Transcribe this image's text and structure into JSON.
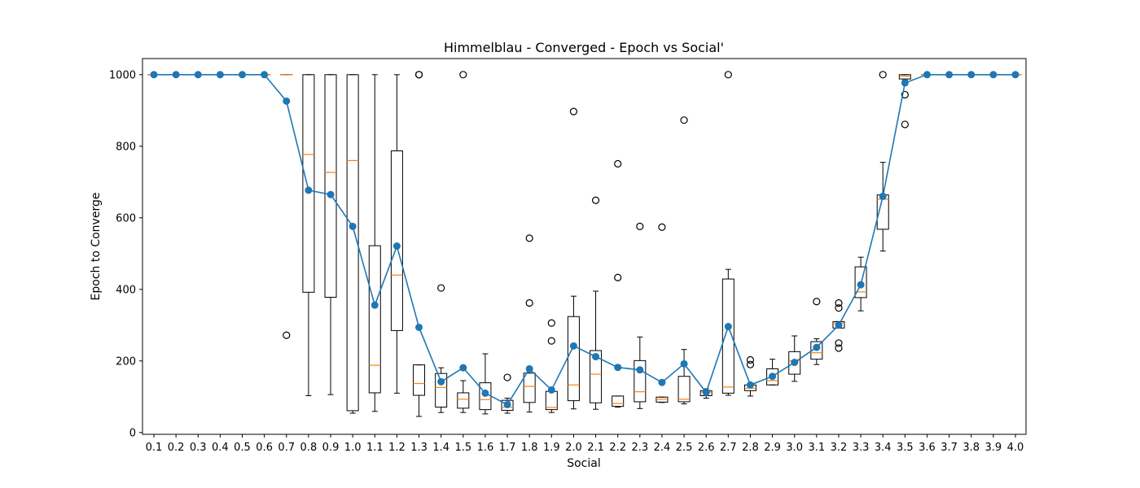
{
  "chart_data": {
    "type": "box",
    "title": "Himmelblau - Converged - Epoch vs Social'",
    "xlabel": "Social",
    "ylabel": "Epoch to Converge",
    "ylim": [
      -5,
      1045
    ],
    "yticks": [
      0,
      200,
      400,
      600,
      800,
      1000
    ],
    "grid": false,
    "categories": [
      "0.1",
      "0.2",
      "0.3",
      "0.4",
      "0.5",
      "0.6",
      "0.7",
      "0.8",
      "0.9",
      "1.0",
      "1.1",
      "1.2",
      "1.3",
      "1.4",
      "1.5",
      "1.6",
      "1.7",
      "1.8",
      "1.9",
      "2.0",
      "2.1",
      "2.2",
      "2.3",
      "2.4",
      "2.5",
      "2.6",
      "2.7",
      "2.8",
      "2.9",
      "3.0",
      "3.1",
      "3.2",
      "3.3",
      "3.4",
      "3.5",
      "3.6",
      "3.7",
      "3.8",
      "3.9",
      "4.0"
    ],
    "box_series": {
      "box_color": "#000000",
      "median_color": "#ff7f0e",
      "boxes": [
        {
          "q1": 1000,
          "median": 1000,
          "q3": 1000,
          "whislo": 1000,
          "whishi": 1000,
          "fliers": []
        },
        {
          "q1": 1000,
          "median": 1000,
          "q3": 1000,
          "whislo": 1000,
          "whishi": 1000,
          "fliers": []
        },
        {
          "q1": 1000,
          "median": 1000,
          "q3": 1000,
          "whislo": 1000,
          "whishi": 1000,
          "fliers": []
        },
        {
          "q1": 1000,
          "median": 1000,
          "q3": 1000,
          "whislo": 1000,
          "whishi": 1000,
          "fliers": []
        },
        {
          "q1": 1000,
          "median": 1000,
          "q3": 1000,
          "whislo": 1000,
          "whishi": 1000,
          "fliers": []
        },
        {
          "q1": 1000,
          "median": 1000,
          "q3": 1000,
          "whislo": 1000,
          "whishi": 1000,
          "fliers": []
        },
        {
          "q1": 1000,
          "median": 1000,
          "q3": 1000,
          "whislo": 1000,
          "whishi": 1000,
          "fliers": [
            272
          ]
        },
        {
          "q1": 392,
          "median": 777,
          "q3": 1000,
          "whislo": 103,
          "whishi": 1000,
          "fliers": []
        },
        {
          "q1": 378,
          "median": 727,
          "q3": 1000,
          "whislo": 106,
          "whishi": 1000,
          "fliers": []
        },
        {
          "q1": 61,
          "median": 760,
          "q3": 1000,
          "whislo": 54,
          "whishi": 1000,
          "fliers": []
        },
        {
          "q1": 111,
          "median": 188,
          "q3": 522,
          "whislo": 59,
          "whishi": 1000,
          "fliers": []
        },
        {
          "q1": 285,
          "median": 440,
          "q3": 787,
          "whislo": 110,
          "whishi": 1000,
          "fliers": []
        },
        {
          "q1": 104,
          "median": 137,
          "q3": 189,
          "whislo": 45,
          "whishi": 189,
          "fliers": [
            1000,
            1000
          ]
        },
        {
          "q1": 71,
          "median": 126,
          "q3": 165,
          "whislo": 56,
          "whishi": 181,
          "fliers": [
            404
          ]
        },
        {
          "q1": 68,
          "median": 93,
          "q3": 111,
          "whislo": 56,
          "whishi": 145,
          "fliers": [
            1000
          ]
        },
        {
          "q1": 64,
          "median": 92,
          "q3": 139,
          "whislo": 52,
          "whishi": 220,
          "fliers": []
        },
        {
          "q1": 62,
          "median": 71,
          "q3": 90,
          "whislo": 54,
          "whishi": 96,
          "fliers": [
            154
          ]
        },
        {
          "q1": 84,
          "median": 129,
          "q3": 166,
          "whislo": 57,
          "whishi": 170,
          "fliers": [
            543,
            362
          ]
        },
        {
          "q1": 64,
          "median": 70,
          "q3": 115,
          "whislo": 56,
          "whishi": 121,
          "fliers": [
            306,
            256
          ]
        },
        {
          "q1": 89,
          "median": 133,
          "q3": 324,
          "whislo": 66,
          "whishi": 381,
          "fliers": [
            897
          ]
        },
        {
          "q1": 83,
          "median": 163,
          "q3": 229,
          "whislo": 65,
          "whishi": 395,
          "fliers": [
            649
          ]
        },
        {
          "q1": 73,
          "median": 81,
          "q3": 102,
          "whislo": 71,
          "whishi": 102,
          "fliers": [
            751,
            433
          ]
        },
        {
          "q1": 86,
          "median": 114,
          "q3": 201,
          "whislo": 67,
          "whishi": 267,
          "fliers": [
            576
          ]
        },
        {
          "q1": 85,
          "median": 93,
          "q3": 99,
          "whislo": 84,
          "whishi": 99,
          "fliers": [
            574
          ]
        },
        {
          "q1": 86,
          "median": 93,
          "q3": 157,
          "whislo": 80,
          "whishi": 232,
          "fliers": [
            873
          ]
        },
        {
          "q1": 103,
          "median": 113,
          "q3": 117,
          "whislo": 96,
          "whishi": 122,
          "fliers": []
        },
        {
          "q1": 110,
          "median": 127,
          "q3": 429,
          "whislo": 104,
          "whishi": 456,
          "fliers": [
            1000
          ]
        },
        {
          "q1": 117,
          "median": 124,
          "q3": 133,
          "whislo": 102,
          "whishi": 138,
          "fliers": [
            203,
            190
          ]
        },
        {
          "q1": 133,
          "median": 145,
          "q3": 178,
          "whislo": 133,
          "whishi": 205,
          "fliers": []
        },
        {
          "q1": 163,
          "median": 200,
          "q3": 226,
          "whislo": 143,
          "whishi": 270,
          "fliers": []
        },
        {
          "q1": 205,
          "median": 223,
          "q3": 254,
          "whislo": 190,
          "whishi": 262,
          "fliers": [
            366
          ]
        },
        {
          "q1": 292,
          "median": 306,
          "q3": 310,
          "whislo": 292,
          "whishi": 310,
          "fliers": [
            362,
            348,
            250,
            236
          ]
        },
        {
          "q1": 377,
          "median": 393,
          "q3": 463,
          "whislo": 340,
          "whishi": 490,
          "fliers": []
        },
        {
          "q1": 568,
          "median": 652,
          "q3": 664,
          "whislo": 507,
          "whishi": 755,
          "fliers": [
            1000
          ]
        },
        {
          "q1": 988,
          "median": 996,
          "q3": 1000,
          "whislo": 985,
          "whishi": 1000,
          "fliers": [
            944,
            861
          ]
        },
        {
          "q1": 1000,
          "median": 1000,
          "q3": 1000,
          "whislo": 1000,
          "whishi": 1000,
          "fliers": []
        },
        {
          "q1": 1000,
          "median": 1000,
          "q3": 1000,
          "whislo": 1000,
          "whishi": 1000,
          "fliers": []
        },
        {
          "q1": 1000,
          "median": 1000,
          "q3": 1000,
          "whislo": 1000,
          "whishi": 1000,
          "fliers": []
        },
        {
          "q1": 1000,
          "median": 1000,
          "q3": 1000,
          "whislo": 1000,
          "whishi": 1000,
          "fliers": []
        },
        {
          "q1": 1000,
          "median": 1000,
          "q3": 1000,
          "whislo": 1000,
          "whishi": 1000,
          "fliers": []
        }
      ]
    },
    "line_series": {
      "color": "#1f77b4",
      "marker": "circle",
      "values": [
        1000,
        1000,
        1000,
        1000,
        1000,
        1000,
        926,
        677,
        665,
        576,
        356,
        521,
        294,
        142,
        181,
        110,
        78,
        178,
        119,
        242,
        212,
        182,
        175,
        140,
        192,
        112,
        296,
        133,
        157,
        196,
        238,
        300,
        413,
        660,
        977,
        1000,
        1000,
        1000,
        1000,
        1000
      ]
    }
  }
}
